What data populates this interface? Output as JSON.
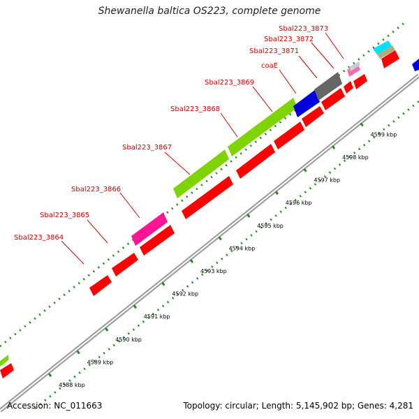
{
  "title": "Shewanella baltica OS223, complete genome",
  "footer": {
    "accession": "Accession: NC_011663",
    "summary": "Topology: circular; Length: 5,145,902 bp; Genes: 4,281"
  },
  "ticks": [
    "4588 kbp",
    "4589 kbp",
    "4590 kbp",
    "4591 kbp",
    "4592 kbp",
    "4593 kbp",
    "4594 kbp",
    "4595 kbp",
    "4596 kbp",
    "4597 kbp",
    "4598 kbp",
    "4599 kbp"
  ],
  "genes": [
    {
      "label": "Sbal223_3864",
      "color": "#ff0000"
    },
    {
      "label": "Sbal223_3865",
      "color": "#ff0000"
    },
    {
      "label": "Sbal223_3866",
      "color": "#ff1493"
    },
    {
      "label": "Sbal223_3867",
      "color": "#7fd400"
    },
    {
      "label": "Sbal223_3868",
      "color": "#7fd400"
    },
    {
      "label": "Sbal223_3869",
      "color": "#0000dd"
    },
    {
      "label": "coaE",
      "color": "#666666"
    },
    {
      "label": "Sbal223_3871",
      "color": "#ff0000"
    },
    {
      "label": "Sbal223_3872",
      "color": "#ff69b4"
    },
    {
      "label": "Sbal223_3873",
      "color": "#aaaaaa"
    }
  ],
  "colors": {
    "cds": "#ff0000",
    "dotted_ring": "#228b22",
    "backbone": "#888888",
    "label": "#cc0000"
  }
}
